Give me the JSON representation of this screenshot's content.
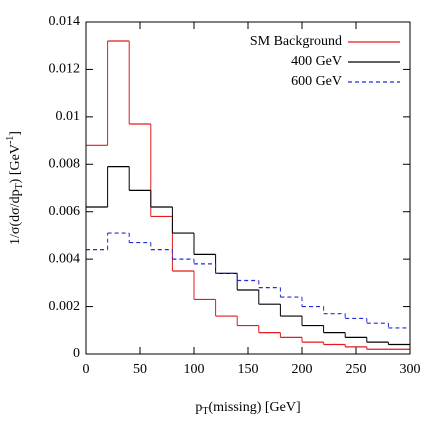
{
  "chart_data": {
    "type": "histogram",
    "x_label": [
      "p",
      "T",
      "(missing) [GeV]"
    ],
    "y_label": [
      "1/σ(dσ/dp",
      "T",
      ") [GeV",
      "-1",
      "]"
    ],
    "bins": [
      0,
      20,
      40,
      60,
      80,
      100,
      120,
      140,
      160,
      180,
      200,
      220,
      240,
      260,
      280,
      300
    ],
    "series": [
      {
        "name": "SM Background",
        "color": "#e41a1c",
        "linestyle": "solid",
        "values": [
          0.0088,
          0.0132,
          0.0097,
          0.0058,
          0.0035,
          0.0023,
          0.0016,
          0.0012,
          0.0009,
          0.0007,
          0.0005,
          0.0004,
          0.0003,
          0.0002,
          0.0002
        ]
      },
      {
        "name": "400 GeV",
        "color": "#000000",
        "linestyle": "solid",
        "values": [
          0.0062,
          0.0079,
          0.0069,
          0.0062,
          0.0051,
          0.0042,
          0.0034,
          0.0027,
          0.0021,
          0.0016,
          0.0012,
          0.0009,
          0.0007,
          0.0005,
          0.0004
        ]
      },
      {
        "name": "600 GeV",
        "color": "#1f2fd6",
        "linestyle": "dashed",
        "values": [
          0.0044,
          0.0051,
          0.0047,
          0.0044,
          0.004,
          0.0038,
          0.0034,
          0.0031,
          0.0028,
          0.0024,
          0.002,
          0.0017,
          0.0015,
          0.0013,
          0.0011
        ]
      }
    ],
    "xlim": [
      0,
      300
    ],
    "xticks": [
      0,
      50,
      100,
      150,
      200,
      250,
      300
    ],
    "ylim": [
      0,
      0.014
    ],
    "yticks": [
      0,
      0.002,
      0.004,
      0.006,
      0.008,
      0.01,
      0.012,
      0.014
    ],
    "legend": "upper right"
  }
}
